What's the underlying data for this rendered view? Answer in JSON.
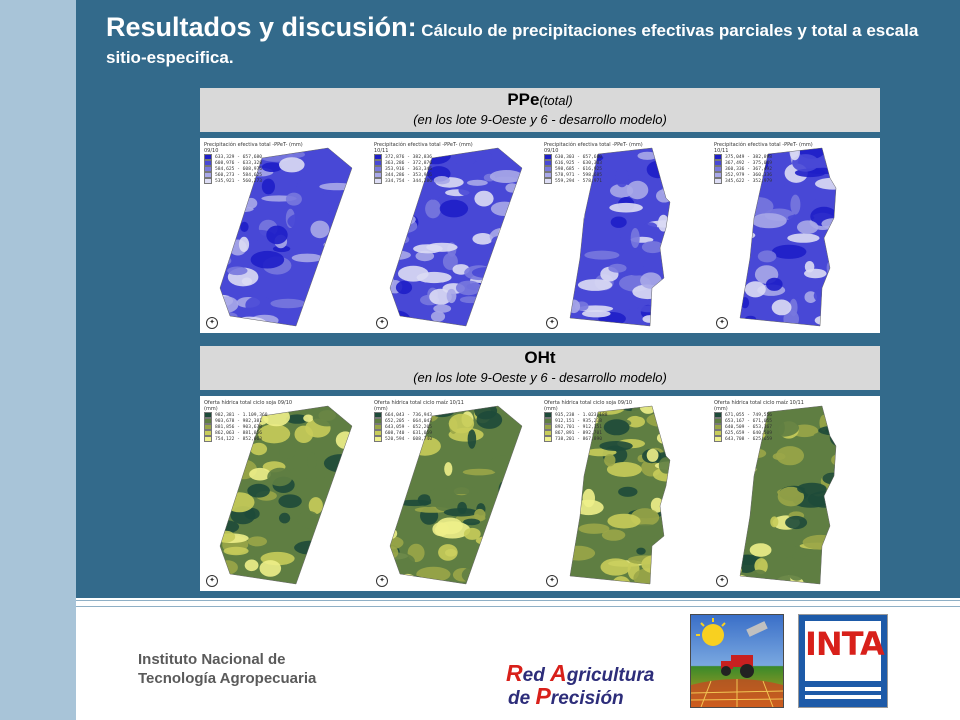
{
  "slide": {
    "title_main": "Resultados y discusión:",
    "title_detail": " Cálculo de precipitaciones efectivas parciales y total a escala sitio-especifica."
  },
  "panel_ppe": {
    "heading": "PPe",
    "heading_suffix": "(total)",
    "subtitle": "(en los lote 9-Oeste y 6 - desarrollo modelo)",
    "maps": [
      {
        "legend_title": "Precipitación efectiva total -PPeT- (mm) 09/10",
        "legend": [
          "633,329 - 657,680",
          "608,976 - 633,328",
          "584,625 - 608,976",
          "560,273 - 584,625",
          "535,921 - 560,273"
        ],
        "colors": [
          "#1e1ec8",
          "#4848d6",
          "#7878de",
          "#a8a8e8",
          "#dcdcf4"
        ]
      },
      {
        "legend_title": "Precipitación efectiva total -PPeT- (mm) 10/11",
        "legend": [
          "372,876 - 382,836",
          "363,286 - 372,876",
          "353,916 - 363,346",
          "344,286 - 353,916",
          "334,754 - 344,286"
        ],
        "colors": [
          "#1e1ec8",
          "#4848d6",
          "#7878de",
          "#a8a8e8",
          "#dcdcf4"
        ]
      },
      {
        "legend_title": "Precipitación efectiva total -PPeT- (mm) 09/10",
        "legend": [
          "630,303 - 657,680",
          "616,925 - 630,303",
          "598,685 - 616,925",
          "578,971 - 598,685",
          "559,294 - 578,971"
        ],
        "colors": [
          "#1e1ec8",
          "#4848d6",
          "#7878de",
          "#a8a8e8",
          "#dcdcf4"
        ]
      },
      {
        "legend_title": "Precipitación efectiva total -PPeT- (mm) 10/11",
        "legend": [
          "375,049 - 382,898",
          "367,492 - 375,049",
          "360,336 - 367,492",
          "352,979 - 360,336",
          "345,622 - 352,979"
        ],
        "colors": [
          "#1e1ec8",
          "#4848d6",
          "#7878de",
          "#a8a8e8",
          "#dcdcf4"
        ]
      }
    ]
  },
  "panel_oht": {
    "heading": "OHt",
    "subtitle": "(en los lote 9-Oeste y 6 - desarrollo modelo)",
    "maps": [
      {
        "legend_title": "Oferta hídrica total ciclo soja 09/10 (mm)",
        "legend": [
          "982,381 - 1.109,360",
          "903,678 - 982,381",
          "881,856 - 903,678",
          "862,063 - 881,856",
          "754,122 - 852,063"
        ],
        "colors": [
          "#1e4a3a",
          "#5f7e42",
          "#9aa648",
          "#c8cc5a",
          "#eef08a"
        ]
      },
      {
        "legend_title": "Oferta hídrica total ciclo maíz 10/11 (mm)",
        "legend": [
          "664,043 - 736,943",
          "652,205 - 664,043",
          "643,059 - 652,205",
          "608,740 - 631,059",
          "520,594 - 608,740"
        ],
        "colors": [
          "#1e4a3a",
          "#5f7e42",
          "#9aa648",
          "#c8cc5a",
          "#eef08a"
        ]
      },
      {
        "legend_title": "Oferta hídrica total ciclo soja 09/10 (mm)",
        "legend": [
          "935,238 - 1.023,188",
          "912,151 - 935,238",
          "892,701 - 912,151",
          "867,891 - 892,701",
          "738,201 - 867,890"
        ],
        "colors": [
          "#1e4a3a",
          "#5f7e42",
          "#9aa648",
          "#c8cc5a",
          "#eef08a"
        ]
      },
      {
        "legend_title": "Oferta hídrica total ciclo maíz 10/11 (mm)",
        "legend": [
          "671,055 - 749,556",
          "653,167 - 671,055",
          "640,509 - 653,167",
          "625,659 - 640,509",
          "643,708 - 625,659"
        ],
        "colors": [
          "#1e4a3a",
          "#5f7e42",
          "#9aa648",
          "#c8cc5a",
          "#eef08a"
        ]
      }
    ]
  },
  "footer": {
    "institute_line1": "Instituto Nacional de",
    "institute_line2": "Tecnología Agropecuaria",
    "rap_line1_cap1": "R",
    "rap_line1_rest1": "ed ",
    "rap_line1_cap2": "A",
    "rap_line1_rest2": "gricultura",
    "rap_line2_pre": "de ",
    "rap_line2_cap": "P",
    "rap_line2_rest": "recisión",
    "inta_logo": "INTA"
  }
}
